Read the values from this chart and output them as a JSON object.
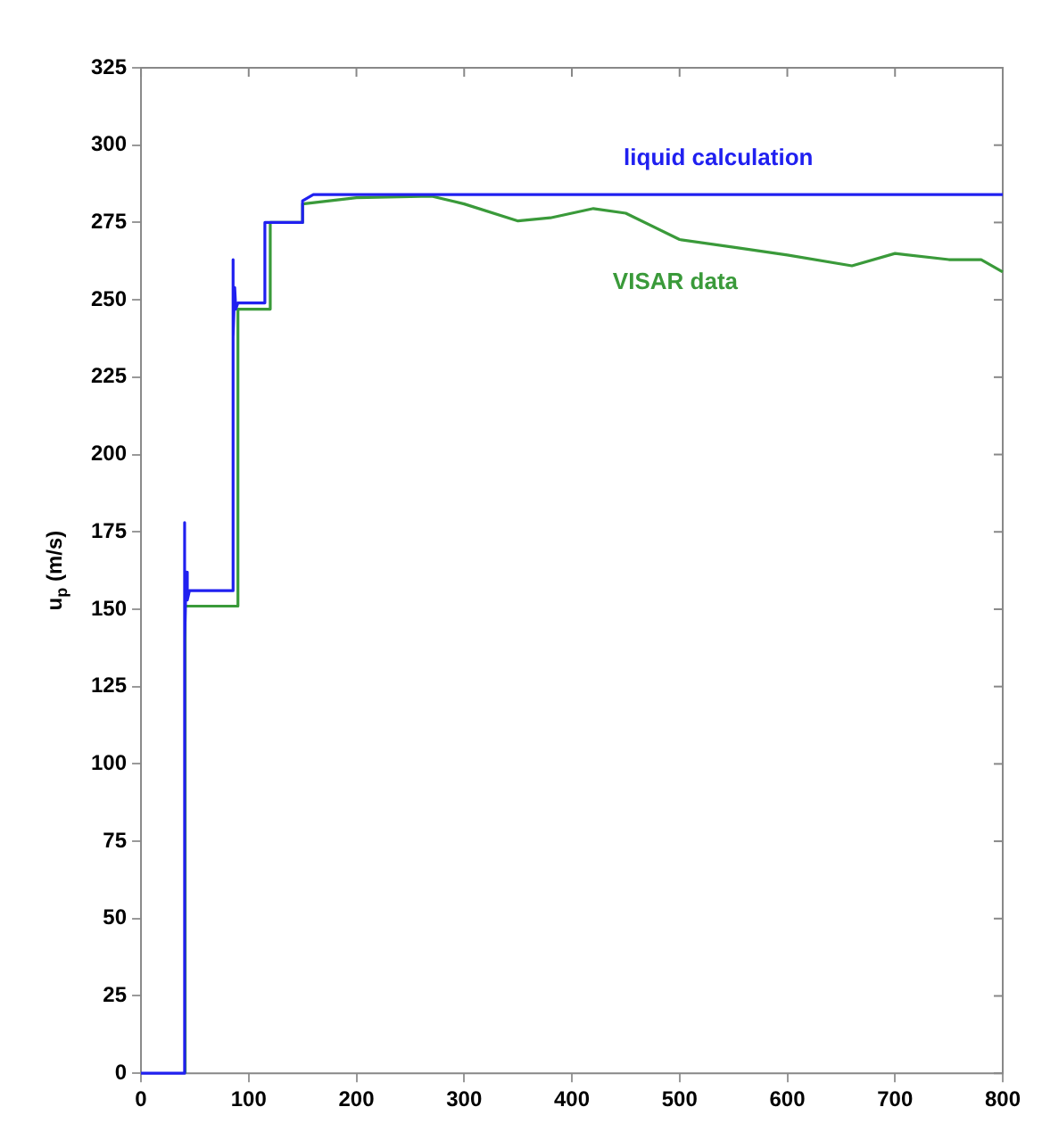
{
  "chart_data": {
    "type": "line",
    "ylabel": "u$_{p}$ (m/s)",
    "xlim": [
      0,
      800
    ],
    "xticks": [
      0,
      100,
      200,
      300,
      400,
      500,
      600,
      700,
      800
    ],
    "ylim": [
      0,
      325
    ],
    "yticks": [
      0,
      25,
      50,
      75,
      100,
      125,
      150,
      175,
      200,
      225,
      250,
      275,
      300,
      325
    ],
    "grid": false,
    "legend": false,
    "marker": "none",
    "line_style": "solid",
    "series": [
      {
        "name": "liquid calculation",
        "color": "#2020f0",
        "x": [
          0,
          40,
          40,
          41,
          42,
          43,
          45,
          85,
          85,
          86,
          87,
          88,
          90,
          115,
          115,
          150,
          150,
          160,
          800
        ],
        "values": [
          0,
          0,
          178,
          140,
          162,
          153,
          156,
          156,
          263,
          238,
          254,
          247,
          249,
          249,
          275,
          275,
          282,
          284,
          284
        ]
      },
      {
        "name": "VISAR data",
        "color": "#3a9a3a",
        "x": [
          41,
          41,
          90,
          90,
          120,
          120,
          150,
          150,
          200,
          270,
          300,
          350,
          380,
          420,
          450,
          500,
          550,
          600,
          660,
          700,
          750,
          780,
          800
        ],
        "values": [
          0,
          151,
          151,
          247,
          247,
          275,
          275,
          281,
          283,
          283.5,
          281,
          275.5,
          276.5,
          279.5,
          278,
          269.5,
          267,
          264.5,
          261,
          265,
          263,
          263,
          259
        ]
      }
    ]
  }
}
